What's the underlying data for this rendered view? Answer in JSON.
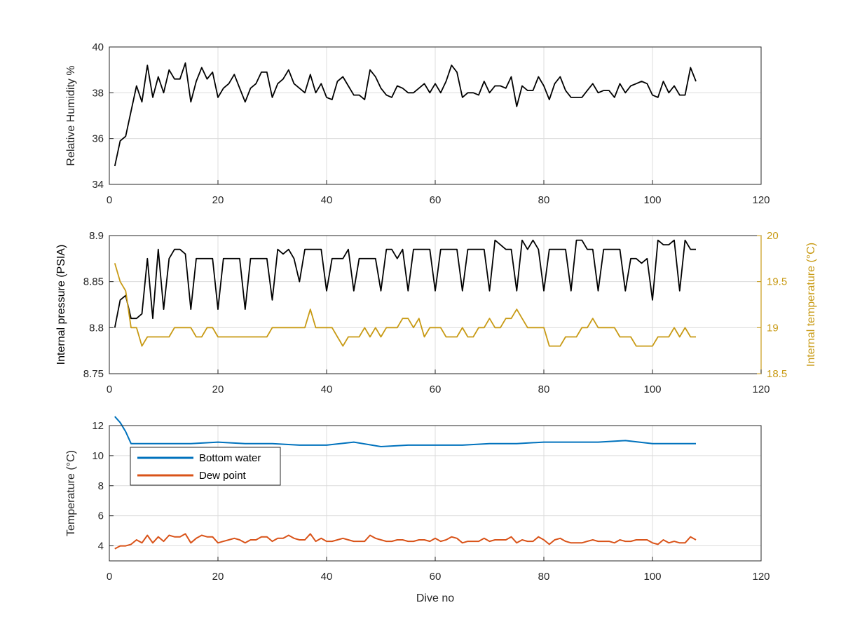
{
  "colors": {
    "black_series": "#000000",
    "temperature_series": "#c89a14",
    "bottom_water": "#0072bd",
    "dew_point": "#d95319",
    "grid": "#dcdcdc",
    "axis": "#262626"
  },
  "chart_data": [
    {
      "type": "line",
      "ylabel": "Relative Humidity %",
      "xlim": [
        0,
        120
      ],
      "ylim": [
        34,
        40
      ],
      "xticks": [
        0,
        20,
        40,
        60,
        80,
        100,
        120
      ],
      "yticks": [
        34,
        36,
        38,
        40
      ],
      "grid": true,
      "series": [
        {
          "color": "#000000",
          "x": [
            1,
            2,
            3,
            4,
            5,
            6,
            7,
            8,
            9,
            10,
            11,
            12,
            13,
            14,
            15,
            16,
            17,
            18,
            19,
            20,
            21,
            22,
            23,
            24,
            25,
            26,
            27,
            28,
            29,
            30,
            31,
            32,
            33,
            34,
            35,
            36,
            37,
            38,
            39,
            40,
            41,
            42,
            43,
            44,
            45,
            46,
            47,
            48,
            49,
            50,
            51,
            52,
            53,
            54,
            55,
            56,
            57,
            58,
            59,
            60,
            61,
            62,
            63,
            64,
            65,
            66,
            67,
            68,
            69,
            70,
            71,
            72,
            73,
            74,
            75,
            76,
            77,
            78,
            79,
            80,
            81,
            82,
            83,
            84,
            85,
            86,
            87,
            88,
            89,
            90,
            91,
            92,
            93,
            94,
            95,
            96,
            97,
            98,
            99,
            100,
            101,
            102,
            103,
            104,
            105,
            106,
            107,
            108
          ],
          "y": [
            34.8,
            35.9,
            36.1,
            37.2,
            38.3,
            37.6,
            39.2,
            37.8,
            38.7,
            38.0,
            39.0,
            38.6,
            38.6,
            39.3,
            37.6,
            38.5,
            39.1,
            38.6,
            38.9,
            37.8,
            38.2,
            38.4,
            38.8,
            38.2,
            37.6,
            38.2,
            38.4,
            38.9,
            38.9,
            37.8,
            38.4,
            38.6,
            39.0,
            38.4,
            38.2,
            38.0,
            38.8,
            38.0,
            38.4,
            37.8,
            37.7,
            38.5,
            38.7,
            38.3,
            37.9,
            37.9,
            37.7,
            39.0,
            38.7,
            38.2,
            37.9,
            37.8,
            38.3,
            38.2,
            38.0,
            38.0,
            38.2,
            38.4,
            38.0,
            38.4,
            38.0,
            38.5,
            39.2,
            38.9,
            37.8,
            38.0,
            38.0,
            37.9,
            38.5,
            38.0,
            38.3,
            38.3,
            38.2,
            38.7,
            37.4,
            38.3,
            38.1,
            38.1,
            38.7,
            38.3,
            37.7,
            38.4,
            38.7,
            38.1,
            37.8,
            37.8,
            37.8,
            38.1,
            38.4,
            38.0,
            38.1,
            38.1,
            37.8,
            38.4,
            38.0,
            38.3,
            38.4,
            38.5,
            38.4,
            37.9,
            37.8,
            38.5,
            38.0,
            38.3,
            37.9,
            37.9,
            39.1,
            38.5
          ]
        }
      ]
    },
    {
      "type": "line",
      "ylabel": "Internal pressure (PSIA)",
      "ylabel_right": "Internal temperature (°C)",
      "xlim": [
        0,
        120
      ],
      "ylim": [
        8.75,
        8.9
      ],
      "ylim_right": [
        18.5,
        20
      ],
      "xticks": [
        0,
        20,
        40,
        60,
        80,
        100,
        120
      ],
      "yticks": [
        8.75,
        8.8,
        8.85,
        8.9
      ],
      "yticks_right": [
        18.5,
        19,
        19.5,
        20
      ],
      "ytick_labels": [
        "8.75",
        "8.8",
        "8.85",
        "8.9"
      ],
      "ytick_labels_right": [
        "18.5",
        "19",
        "19.5",
        "20"
      ],
      "grid": true,
      "series": [
        {
          "axis": "left",
          "color": "#000000",
          "x": [
            1,
            2,
            3,
            4,
            5,
            6,
            7,
            8,
            9,
            10,
            11,
            12,
            13,
            14,
            15,
            16,
            17,
            18,
            19,
            20,
            21,
            22,
            23,
            24,
            25,
            26,
            27,
            28,
            29,
            30,
            31,
            32,
            33,
            34,
            35,
            36,
            37,
            38,
            39,
            40,
            41,
            42,
            43,
            44,
            45,
            46,
            47,
            48,
            49,
            50,
            51,
            52,
            53,
            54,
            55,
            56,
            57,
            58,
            59,
            60,
            61,
            62,
            63,
            64,
            65,
            66,
            67,
            68,
            69,
            70,
            71,
            72,
            73,
            74,
            75,
            76,
            77,
            78,
            79,
            80,
            81,
            82,
            83,
            84,
            85,
            86,
            87,
            88,
            89,
            90,
            91,
            92,
            93,
            94,
            95,
            96,
            97,
            98,
            99,
            100,
            101,
            102,
            103,
            104,
            105,
            106,
            107,
            108
          ],
          "y": [
            8.8,
            8.83,
            8.835,
            8.81,
            8.81,
            8.815,
            8.875,
            8.81,
            8.885,
            8.82,
            8.875,
            8.885,
            8.885,
            8.88,
            8.82,
            8.875,
            8.875,
            8.875,
            8.875,
            8.82,
            8.875,
            8.875,
            8.875,
            8.875,
            8.82,
            8.875,
            8.875,
            8.875,
            8.875,
            8.83,
            8.885,
            8.88,
            8.885,
            8.875,
            8.85,
            8.885,
            8.885,
            8.885,
            8.885,
            8.84,
            8.875,
            8.875,
            8.875,
            8.885,
            8.84,
            8.875,
            8.875,
            8.875,
            8.875,
            8.84,
            8.885,
            8.885,
            8.875,
            8.885,
            8.84,
            8.885,
            8.885,
            8.885,
            8.885,
            8.84,
            8.885,
            8.885,
            8.885,
            8.885,
            8.84,
            8.885,
            8.885,
            8.885,
            8.885,
            8.84,
            8.895,
            8.89,
            8.885,
            8.885,
            8.84,
            8.895,
            8.885,
            8.895,
            8.885,
            8.84,
            8.885,
            8.885,
            8.885,
            8.885,
            8.84,
            8.895,
            8.895,
            8.885,
            8.885,
            8.84,
            8.885,
            8.885,
            8.885,
            8.885,
            8.84,
            8.875,
            8.875,
            8.87,
            8.875,
            8.83,
            8.895,
            8.89,
            8.89,
            8.895,
            8.84,
            8.895,
            8.885,
            8.885
          ]
        },
        {
          "axis": "right",
          "color": "#c89a14",
          "x": [
            1,
            2,
            3,
            4,
            5,
            6,
            7,
            8,
            9,
            10,
            11,
            12,
            13,
            14,
            15,
            16,
            17,
            18,
            19,
            20,
            21,
            22,
            23,
            24,
            25,
            26,
            27,
            28,
            29,
            30,
            31,
            32,
            33,
            34,
            35,
            36,
            37,
            38,
            39,
            40,
            41,
            42,
            43,
            44,
            45,
            46,
            47,
            48,
            49,
            50,
            51,
            52,
            53,
            54,
            55,
            56,
            57,
            58,
            59,
            60,
            61,
            62,
            63,
            64,
            65,
            66,
            67,
            68,
            69,
            70,
            71,
            72,
            73,
            74,
            75,
            76,
            77,
            78,
            79,
            80,
            81,
            82,
            83,
            84,
            85,
            86,
            87,
            88,
            89,
            90,
            91,
            92,
            93,
            94,
            95,
            96,
            97,
            98,
            99,
            100,
            101,
            102,
            103,
            104,
            105,
            106,
            107,
            108
          ],
          "y": [
            19.7,
            19.5,
            19.4,
            19.0,
            19.0,
            18.8,
            18.9,
            18.9,
            18.9,
            18.9,
            18.9,
            19.0,
            19.0,
            19.0,
            19.0,
            18.9,
            18.9,
            19.0,
            19.0,
            18.9,
            18.9,
            18.9,
            18.9,
            18.9,
            18.9,
            18.9,
            18.9,
            18.9,
            18.9,
            19.0,
            19.0,
            19.0,
            19.0,
            19.0,
            19.0,
            19.0,
            19.2,
            19.0,
            19.0,
            19.0,
            19.0,
            18.9,
            18.8,
            18.9,
            18.9,
            18.9,
            19.0,
            18.9,
            19.0,
            18.9,
            19.0,
            19.0,
            19.0,
            19.1,
            19.1,
            19.0,
            19.1,
            18.9,
            19.0,
            19.0,
            19.0,
            18.9,
            18.9,
            18.9,
            19.0,
            18.9,
            18.9,
            19.0,
            19.0,
            19.1,
            19.0,
            19.0,
            19.1,
            19.1,
            19.2,
            19.1,
            19.0,
            19.0,
            19.0,
            19.0,
            18.8,
            18.8,
            18.8,
            18.9,
            18.9,
            18.9,
            19.0,
            19.0,
            19.1,
            19.0,
            19.0,
            19.0,
            19.0,
            18.9,
            18.9,
            18.9,
            18.8,
            18.8,
            18.8,
            18.8,
            18.9,
            18.9,
            18.9,
            19.0,
            18.9,
            19.0,
            18.9,
            18.9
          ]
        }
      ]
    },
    {
      "type": "line",
      "xlabel": "Dive no",
      "ylabel": "Temperature (°C)",
      "xlim": [
        0,
        120
      ],
      "ylim": [
        3,
        12
      ],
      "xticks": [
        0,
        20,
        40,
        60,
        80,
        100,
        120
      ],
      "yticks": [
        4,
        6,
        8,
        10,
        12
      ],
      "grid": true,
      "legend_position": "top-left",
      "series": [
        {
          "name": "Bottom water",
          "color": "#0072bd",
          "x": [
            1,
            2,
            3,
            4,
            5,
            10,
            15,
            20,
            25,
            30,
            35,
            40,
            45,
            50,
            55,
            60,
            65,
            70,
            75,
            80,
            85,
            90,
            95,
            100,
            105,
            108
          ],
          "y": [
            12.6,
            12.2,
            11.6,
            10.8,
            10.8,
            10.8,
            10.8,
            10.9,
            10.8,
            10.8,
            10.7,
            10.7,
            10.9,
            10.6,
            10.7,
            10.7,
            10.7,
            10.8,
            10.8,
            10.9,
            10.9,
            10.9,
            11.0,
            10.8,
            10.8,
            10.8
          ]
        },
        {
          "name": "Dew point",
          "color": "#d95319",
          "x": [
            1,
            2,
            3,
            4,
            5,
            6,
            7,
            8,
            9,
            10,
            11,
            12,
            13,
            14,
            15,
            16,
            17,
            18,
            19,
            20,
            21,
            22,
            23,
            24,
            25,
            26,
            27,
            28,
            29,
            30,
            31,
            32,
            33,
            34,
            35,
            36,
            37,
            38,
            39,
            40,
            41,
            42,
            43,
            44,
            45,
            46,
            47,
            48,
            49,
            50,
            51,
            52,
            53,
            54,
            55,
            56,
            57,
            58,
            59,
            60,
            61,
            62,
            63,
            64,
            65,
            66,
            67,
            68,
            69,
            70,
            71,
            72,
            73,
            74,
            75,
            76,
            77,
            78,
            79,
            80,
            81,
            82,
            83,
            84,
            85,
            86,
            87,
            88,
            89,
            90,
            91,
            92,
            93,
            94,
            95,
            96,
            97,
            98,
            99,
            100,
            101,
            102,
            103,
            104,
            105,
            106,
            107,
            108
          ],
          "y": [
            3.8,
            4.0,
            4.0,
            4.1,
            4.4,
            4.2,
            4.7,
            4.2,
            4.6,
            4.3,
            4.7,
            4.6,
            4.6,
            4.8,
            4.2,
            4.5,
            4.7,
            4.6,
            4.6,
            4.2,
            4.3,
            4.4,
            4.5,
            4.4,
            4.2,
            4.4,
            4.4,
            4.6,
            4.6,
            4.3,
            4.5,
            4.5,
            4.7,
            4.5,
            4.4,
            4.4,
            4.8,
            4.3,
            4.5,
            4.3,
            4.3,
            4.4,
            4.5,
            4.4,
            4.3,
            4.3,
            4.3,
            4.7,
            4.5,
            4.4,
            4.3,
            4.3,
            4.4,
            4.4,
            4.3,
            4.3,
            4.4,
            4.4,
            4.3,
            4.5,
            4.3,
            4.4,
            4.6,
            4.5,
            4.2,
            4.3,
            4.3,
            4.3,
            4.5,
            4.3,
            4.4,
            4.4,
            4.4,
            4.6,
            4.2,
            4.4,
            4.3,
            4.3,
            4.6,
            4.4,
            4.1,
            4.4,
            4.5,
            4.3,
            4.2,
            4.2,
            4.2,
            4.3,
            4.4,
            4.3,
            4.3,
            4.3,
            4.2,
            4.4,
            4.3,
            4.3,
            4.4,
            4.4,
            4.4,
            4.2,
            4.1,
            4.4,
            4.2,
            4.3,
            4.2,
            4.2,
            4.6,
            4.4
          ]
        }
      ]
    }
  ]
}
